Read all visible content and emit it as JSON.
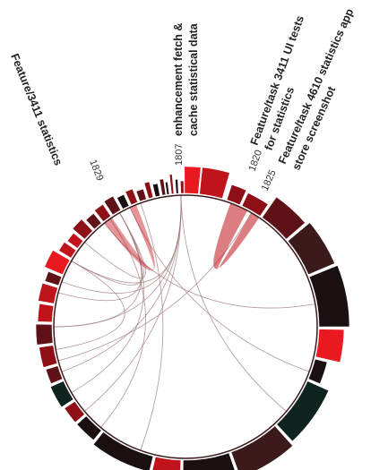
{
  "diagram": {
    "type": "chord-diagram",
    "labels": [
      {
        "id": "lbl-1829",
        "number": "1829",
        "title_lines": [
          "Feature/3411 statistics"
        ]
      },
      {
        "id": "lbl-1807",
        "number": "1807",
        "title_lines": [
          "enhancement fetch &",
          "cache statistical data"
        ]
      },
      {
        "id": "lbl-1820",
        "number": "1820",
        "title_lines": [
          "Feature/task 3411 UI tests",
          "for statistics"
        ]
      },
      {
        "id": "lbl-1825",
        "number": "1825",
        "title_lines": [
          "Feature/task 4610 statistics app",
          "store screenshot"
        ]
      }
    ],
    "colors": {
      "bright_red": "#e8191f",
      "red": "#c0131c",
      "dark_red": "#8e0f15",
      "maroon": "#5e1218",
      "dark_maroon": "#3b1a1c",
      "near_black": "#1a1011",
      "dark_teal": "#0f2420",
      "link": "#9b7474",
      "highlight_link": "#c0131c"
    }
  }
}
